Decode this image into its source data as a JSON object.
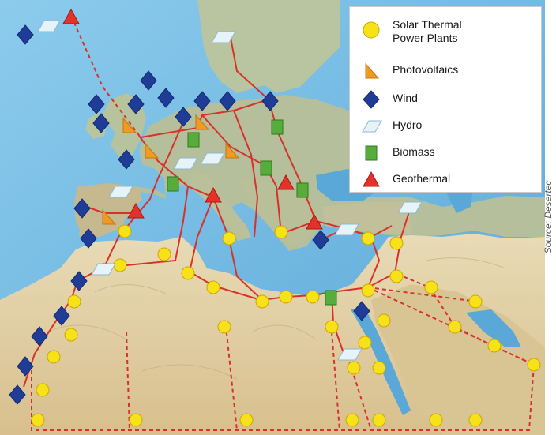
{
  "legend": {
    "items": [
      {
        "label_line1": "Solar Thermal",
        "label_line2": "Power Plants",
        "icon": "sun-circle-icon",
        "color": "#f7e21a"
      },
      {
        "label": "Photovoltaics",
        "icon": "pv-triangle-icon",
        "color": "#ee9a24"
      },
      {
        "label": "Wind",
        "icon": "wind-diamond-icon",
        "color": "#1f3c96"
      },
      {
        "label": "Hydro",
        "icon": "hydro-parallelogram-icon",
        "color": "#cfe8f2"
      },
      {
        "label": "Biomass",
        "icon": "biomass-square-icon",
        "color": "#57ad3b"
      },
      {
        "label": "Geothermal",
        "icon": "geothermal-triangle-icon",
        "color": "#e4322b"
      }
    ]
  },
  "source_credit": "Source: Desertec",
  "colors": {
    "sea": "#6fb8e0",
    "land_north": "#b9c2a2",
    "desert": "#e3d1a6",
    "grid_line": "#d7322a"
  }
}
